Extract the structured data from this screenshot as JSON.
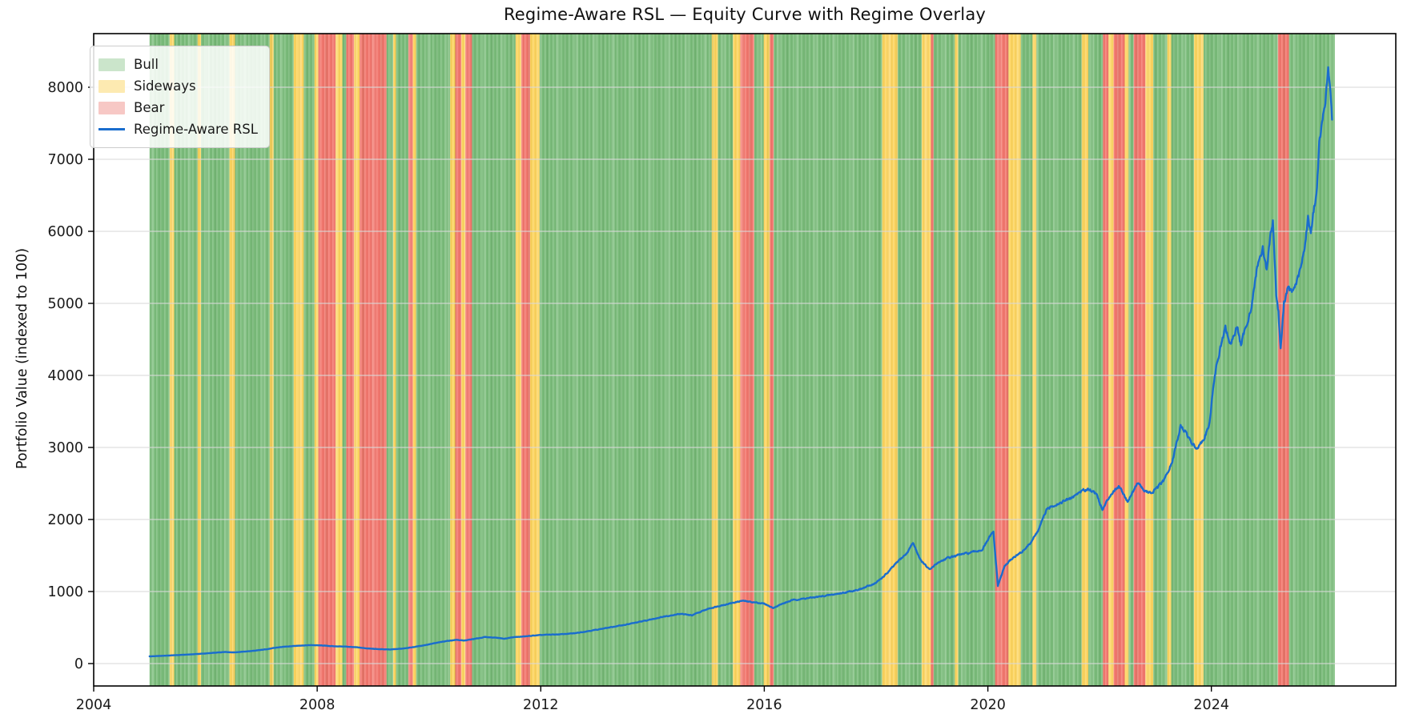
{
  "figure": {
    "title": "Regime-Aware RSL — Equity Curve with Regime Overlay",
    "background": "#ffffff"
  },
  "chart_data": {
    "type": "line",
    "title": "Regime-Aware RSL — Equity Curve with Regime Overlay",
    "xlabel": "",
    "ylabel": "Portfolio Value (indexed to 100)",
    "xlim": [
      2004,
      2027.3
    ],
    "ylim": [
      -311,
      8744
    ],
    "x_ticks": [
      2004,
      2008,
      2012,
      2016,
      2020,
      2024
    ],
    "y_ticks": [
      0,
      1000,
      2000,
      3000,
      4000,
      5000,
      6000,
      7000,
      8000
    ],
    "grid": true,
    "grid_color": "#d9d9d9",
    "legend_position": "upper-left",
    "legend": [
      {
        "label": "Bull",
        "swatch": "patch",
        "color": "#cbe5cb"
      },
      {
        "label": "Sideways",
        "swatch": "patch",
        "color": "#fdeab1"
      },
      {
        "label": "Bear",
        "swatch": "patch",
        "color": "#f7c8c5"
      },
      {
        "label": "Regime-Aware RSL",
        "swatch": "line",
        "color": "#1a6dcd"
      }
    ],
    "regimes": {
      "colors": {
        "bull": "#7abc7a",
        "sideways": "#fcd45f",
        "bear": "#f2776e"
      },
      "segments": [
        [
          2005.0,
          2005.36,
          "bull"
        ],
        [
          2005.36,
          2005.44,
          "sideways"
        ],
        [
          2005.44,
          2005.86,
          "bull"
        ],
        [
          2005.86,
          2005.92,
          "sideways"
        ],
        [
          2005.92,
          2006.43,
          "bull"
        ],
        [
          2006.43,
          2006.53,
          "sideways"
        ],
        [
          2006.53,
          2007.15,
          "bull"
        ],
        [
          2007.15,
          2007.22,
          "sideways"
        ],
        [
          2007.22,
          2007.58,
          "bull"
        ],
        [
          2007.58,
          2007.76,
          "sideways"
        ],
        [
          2007.76,
          2007.95,
          "bull"
        ],
        [
          2007.95,
          2008.02,
          "sideways"
        ],
        [
          2008.02,
          2008.33,
          "bear"
        ],
        [
          2008.33,
          2008.45,
          "sideways"
        ],
        [
          2008.45,
          2008.52,
          "bull"
        ],
        [
          2008.52,
          2008.66,
          "bear"
        ],
        [
          2008.66,
          2008.76,
          "sideways"
        ],
        [
          2008.76,
          2009.24,
          "bear"
        ],
        [
          2009.24,
          2009.36,
          "bull"
        ],
        [
          2009.36,
          2009.41,
          "sideways"
        ],
        [
          2009.41,
          2009.63,
          "bull"
        ],
        [
          2009.63,
          2009.71,
          "bear"
        ],
        [
          2009.71,
          2009.77,
          "sideways"
        ],
        [
          2009.77,
          2010.38,
          "bull"
        ],
        [
          2010.38,
          2010.47,
          "sideways"
        ],
        [
          2010.47,
          2010.58,
          "bear"
        ],
        [
          2010.58,
          2010.65,
          "sideways"
        ],
        [
          2010.65,
          2010.77,
          "bear"
        ],
        [
          2010.77,
          2011.55,
          "bull"
        ],
        [
          2011.55,
          2011.65,
          "sideways"
        ],
        [
          2011.65,
          2011.81,
          "bear"
        ],
        [
          2011.81,
          2011.98,
          "sideways"
        ],
        [
          2011.98,
          2015.06,
          "bull"
        ],
        [
          2015.06,
          2015.17,
          "sideways"
        ],
        [
          2015.17,
          2015.44,
          "bull"
        ],
        [
          2015.44,
          2015.57,
          "sideways"
        ],
        [
          2015.57,
          2015.82,
          "bear"
        ],
        [
          2015.82,
          2015.99,
          "bull"
        ],
        [
          2015.99,
          2016.1,
          "sideways"
        ],
        [
          2016.1,
          2016.17,
          "bear"
        ],
        [
          2016.17,
          2018.11,
          "bull"
        ],
        [
          2018.11,
          2018.39,
          "sideways"
        ],
        [
          2018.39,
          2018.82,
          "bull"
        ],
        [
          2018.82,
          2018.98,
          "sideways"
        ],
        [
          2018.98,
          2019.03,
          "bear"
        ],
        [
          2019.03,
          2019.41,
          "bull"
        ],
        [
          2019.41,
          2019.47,
          "sideways"
        ],
        [
          2019.47,
          2020.13,
          "bull"
        ],
        [
          2020.13,
          2020.37,
          "bear"
        ],
        [
          2020.37,
          2020.59,
          "sideways"
        ],
        [
          2020.59,
          2020.8,
          "bull"
        ],
        [
          2020.8,
          2020.87,
          "sideways"
        ],
        [
          2020.87,
          2021.68,
          "bull"
        ],
        [
          2021.68,
          2021.8,
          "sideways"
        ],
        [
          2021.8,
          2022.06,
          "bull"
        ],
        [
          2022.06,
          2022.16,
          "bear"
        ],
        [
          2022.16,
          2022.25,
          "sideways"
        ],
        [
          2022.25,
          2022.45,
          "bear"
        ],
        [
          2022.45,
          2022.52,
          "sideways"
        ],
        [
          2022.52,
          2022.61,
          "bull"
        ],
        [
          2022.61,
          2022.82,
          "bear"
        ],
        [
          2022.82,
          2022.96,
          "sideways"
        ],
        [
          2022.96,
          2023.21,
          "bull"
        ],
        [
          2023.21,
          2023.28,
          "sideways"
        ],
        [
          2023.28,
          2023.69,
          "bull"
        ],
        [
          2023.69,
          2023.86,
          "sideways"
        ],
        [
          2023.86,
          2025.19,
          "bull"
        ],
        [
          2025.19,
          2025.39,
          "bear"
        ],
        [
          2025.39,
          2026.21,
          "bull"
        ]
      ]
    },
    "series": [
      {
        "name": "Regime-Aware RSL",
        "color": "#1a6dcd",
        "points": [
          [
            2005.0,
            100
          ],
          [
            2005.25,
            108
          ],
          [
            2005.5,
            118
          ],
          [
            2005.75,
            128
          ],
          [
            2006.0,
            140
          ],
          [
            2006.2,
            152
          ],
          [
            2006.35,
            162
          ],
          [
            2006.5,
            155
          ],
          [
            2006.7,
            166
          ],
          [
            2006.9,
            180
          ],
          [
            2007.1,
            200
          ],
          [
            2007.3,
            225
          ],
          [
            2007.5,
            240
          ],
          [
            2007.7,
            250
          ],
          [
            2007.9,
            256
          ],
          [
            2008.1,
            250
          ],
          [
            2008.3,
            240
          ],
          [
            2008.5,
            236
          ],
          [
            2008.7,
            226
          ],
          [
            2008.9,
            210
          ],
          [
            2009.1,
            200
          ],
          [
            2009.3,
            195
          ],
          [
            2009.5,
            206
          ],
          [
            2009.7,
            226
          ],
          [
            2009.9,
            252
          ],
          [
            2010.1,
            282
          ],
          [
            2010.3,
            312
          ],
          [
            2010.5,
            330
          ],
          [
            2010.62,
            318
          ],
          [
            2010.8,
            340
          ],
          [
            2011.0,
            368
          ],
          [
            2011.2,
            360
          ],
          [
            2011.35,
            345
          ],
          [
            2011.5,
            365
          ],
          [
            2011.7,
            376
          ],
          [
            2011.9,
            390
          ],
          [
            2012.1,
            400
          ],
          [
            2012.35,
            406
          ],
          [
            2012.6,
            420
          ],
          [
            2012.8,
            445
          ],
          [
            2013.0,
            470
          ],
          [
            2013.3,
            510
          ],
          [
            2013.6,
            552
          ],
          [
            2013.9,
            600
          ],
          [
            2014.2,
            652
          ],
          [
            2014.5,
            692
          ],
          [
            2014.7,
            668
          ],
          [
            2015.0,
            762
          ],
          [
            2015.2,
            802
          ],
          [
            2015.45,
            845
          ],
          [
            2015.6,
            872
          ],
          [
            2015.8,
            852
          ],
          [
            2016.0,
            832
          ],
          [
            2016.15,
            772
          ],
          [
            2016.3,
            822
          ],
          [
            2016.5,
            880
          ],
          [
            2016.75,
            905
          ],
          [
            2017.0,
            930
          ],
          [
            2017.25,
            960
          ],
          [
            2017.5,
            995
          ],
          [
            2017.75,
            1040
          ],
          [
            2018.0,
            1120
          ],
          [
            2018.2,
            1255
          ],
          [
            2018.4,
            1425
          ],
          [
            2018.55,
            1530
          ],
          [
            2018.66,
            1680
          ],
          [
            2018.8,
            1430
          ],
          [
            2018.96,
            1300
          ],
          [
            2019.1,
            1400
          ],
          [
            2019.3,
            1470
          ],
          [
            2019.5,
            1512
          ],
          [
            2019.7,
            1540
          ],
          [
            2019.9,
            1580
          ],
          [
            2020.05,
            1780
          ],
          [
            2020.1,
            1822
          ],
          [
            2020.18,
            1080
          ],
          [
            2020.3,
            1352
          ],
          [
            2020.45,
            1470
          ],
          [
            2020.6,
            1542
          ],
          [
            2020.75,
            1660
          ],
          [
            2020.9,
            1845
          ],
          [
            2021.05,
            2130
          ],
          [
            2021.2,
            2205
          ],
          [
            2021.35,
            2250
          ],
          [
            2021.5,
            2300
          ],
          [
            2021.65,
            2385
          ],
          [
            2021.8,
            2430
          ],
          [
            2021.95,
            2350
          ],
          [
            2022.05,
            2130
          ],
          [
            2022.2,
            2352
          ],
          [
            2022.35,
            2470
          ],
          [
            2022.5,
            2250
          ],
          [
            2022.68,
            2512
          ],
          [
            2022.8,
            2400
          ],
          [
            2022.92,
            2360
          ],
          [
            2023.05,
            2452
          ],
          [
            2023.16,
            2550
          ],
          [
            2023.3,
            2800
          ],
          [
            2023.45,
            3300
          ],
          [
            2023.55,
            3195
          ],
          [
            2023.65,
            3050
          ],
          [
            2023.73,
            2990
          ],
          [
            2023.85,
            3100
          ],
          [
            2023.96,
            3300
          ],
          [
            2024.06,
            4000
          ],
          [
            2024.15,
            4350
          ],
          [
            2024.25,
            4650
          ],
          [
            2024.35,
            4420
          ],
          [
            2024.46,
            4690
          ],
          [
            2024.53,
            4410
          ],
          [
            2024.62,
            4700
          ],
          [
            2024.72,
            4950
          ],
          [
            2024.82,
            5510
          ],
          [
            2024.92,
            5770
          ],
          [
            2024.99,
            5470
          ],
          [
            2025.05,
            5900
          ],
          [
            2025.1,
            6150
          ],
          [
            2025.16,
            5130
          ],
          [
            2025.2,
            4880
          ],
          [
            2025.24,
            4360
          ],
          [
            2025.3,
            5000
          ],
          [
            2025.36,
            5210
          ],
          [
            2025.45,
            5150
          ],
          [
            2025.55,
            5350
          ],
          [
            2025.62,
            5550
          ],
          [
            2025.68,
            5850
          ],
          [
            2025.73,
            6180
          ],
          [
            2025.78,
            5990
          ],
          [
            2025.83,
            6290
          ],
          [
            2025.88,
            6500
          ],
          [
            2025.93,
            7200
          ],
          [
            2026.0,
            7600
          ],
          [
            2026.05,
            7900
          ],
          [
            2026.09,
            8250
          ],
          [
            2026.12,
            7990
          ],
          [
            2026.16,
            7550
          ]
        ]
      }
    ]
  }
}
